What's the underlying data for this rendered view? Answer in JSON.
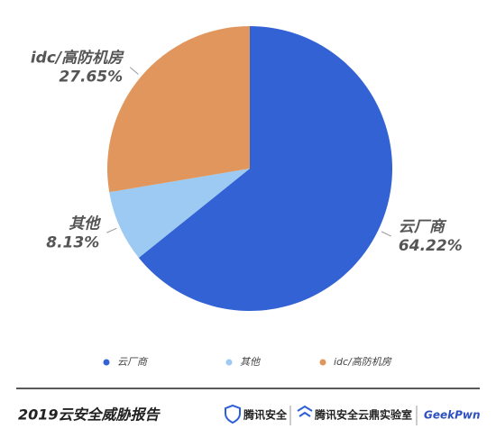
{
  "chart_data": {
    "type": "pie",
    "categories": [
      "云厂商",
      "其他",
      "idc/高防机房"
    ],
    "values": [
      64.22,
      8.13,
      27.65
    ],
    "value_labels": [
      "64.22%",
      "8.13%",
      "27.65%"
    ],
    "colors": [
      "#3262d4",
      "#9ccaf2",
      "#e0965c"
    ],
    "legend": "bottom"
  },
  "footer": {
    "title": "2019云安全威胁报告",
    "logos": [
      "腾讯安全",
      "腾讯安全云鼎实验室",
      "GeekPwn"
    ]
  }
}
